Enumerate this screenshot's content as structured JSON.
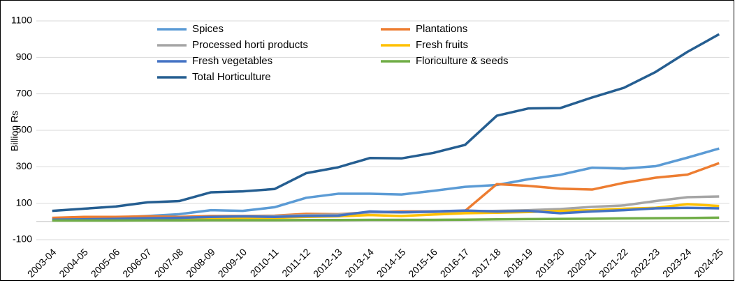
{
  "chart_data": {
    "type": "line",
    "y_label": "Billion Rs",
    "categories": [
      "2003-04",
      "2004-05",
      "2005-06",
      "2006-07",
      "2007-08",
      "2008-09",
      "2009-10",
      "2010-11",
      "2011-12",
      "2012-13",
      "2013-14",
      "2014-15",
      "2015-16",
      "2016-17",
      "2017-18",
      "2018-19",
      "2019-20",
      "2020-21",
      "2021-22",
      "2022-23",
      "2023-24",
      "2024-25"
    ],
    "series": [
      {
        "name": "Spices",
        "color": "#5b9bd5",
        "values": [
          15,
          20,
          22,
          30,
          40,
          62,
          58,
          78,
          130,
          152,
          152,
          148,
          168,
          190,
          200,
          232,
          256,
          295,
          290,
          303,
          350,
          400
        ]
      },
      {
        "name": "Plantations",
        "color": "#ed7d31",
        "values": [
          20,
          25,
          25,
          28,
          25,
          30,
          30,
          32,
          42,
          40,
          50,
          55,
          55,
          58,
          205,
          195,
          180,
          175,
          212,
          240,
          257,
          320
        ]
      },
      {
        "name": "Processed horti products",
        "color": "#a5a5a5",
        "values": [
          10,
          12,
          14,
          18,
          20,
          25,
          28,
          30,
          35,
          38,
          50,
          50,
          52,
          55,
          58,
          62,
          68,
          80,
          88,
          112,
          133,
          137
        ]
      },
      {
        "name": "Fresh fruits",
        "color": "#ffc000",
        "values": [
          8,
          10,
          10,
          12,
          14,
          18,
          20,
          20,
          25,
          28,
          35,
          30,
          38,
          45,
          48,
          52,
          58,
          62,
          70,
          75,
          95,
          85
        ]
      },
      {
        "name": "Fresh vegetables",
        "color": "#4472c4",
        "values": [
          10,
          12,
          14,
          18,
          20,
          25,
          28,
          25,
          30,
          32,
          55,
          50,
          55,
          60,
          55,
          58,
          45,
          55,
          62,
          72,
          75,
          72
        ]
      },
      {
        "name": "Floriculture & seeds",
        "color": "#70ad47",
        "values": [
          5,
          5,
          5,
          6,
          6,
          7,
          7,
          7,
          8,
          8,
          9,
          9,
          9,
          10,
          12,
          13,
          14,
          15,
          17,
          18,
          19,
          21
        ]
      },
      {
        "name": "Total Horticulture",
        "color": "#255e91",
        "values": [
          58,
          70,
          82,
          105,
          112,
          160,
          165,
          178,
          265,
          297,
          348,
          346,
          376,
          420,
          580,
          620,
          622,
          680,
          733,
          820,
          930,
          1027
        ]
      }
    ],
    "ylim": [
      -100,
      1100
    ],
    "yticks": [
      -100,
      100,
      300,
      500,
      700,
      900,
      1100
    ],
    "grid": true
  }
}
